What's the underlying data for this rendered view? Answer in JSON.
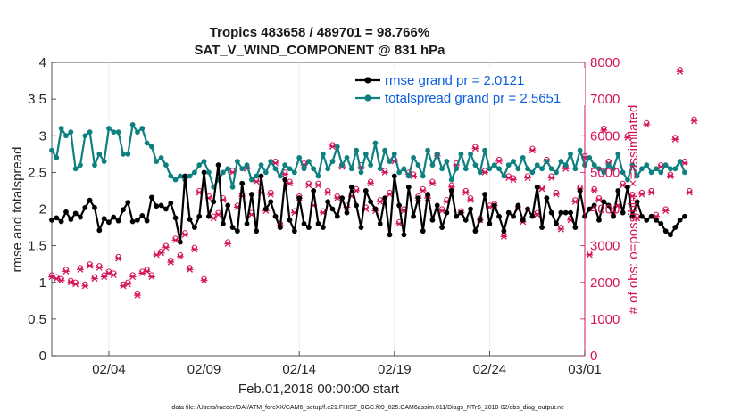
{
  "chart_data": {
    "type": "line",
    "title": "Tropics 483658 / 489701 = 98.766%",
    "subtitle": "SAT_V_WIND_COMPONENT @ 831 hPa",
    "xlabel": "Feb.01,2018 00:00:00 start",
    "ylabel": "rmse and totalspread",
    "ylabel_right": "# of obs: o=possible; ×=assimilated",
    "footer": "data file: /Users/raeder/DAI/ATM_forcXX/CAM6_setup/f.e21.FHIST_BGC.f09_025.CAM6assim.011/Diags_NTrS_2018-02/obs_diag_output.nc",
    "xlim": [
      0,
      28
    ],
    "ylim": [
      0,
      4
    ],
    "ylim_right": [
      0,
      8000
    ],
    "x_ticks": [
      {
        "label": "02/04",
        "value": 3
      },
      {
        "label": "02/09",
        "value": 8
      },
      {
        "label": "02/14",
        "value": 13
      },
      {
        "label": "02/19",
        "value": 18
      },
      {
        "label": "02/24",
        "value": 23
      },
      {
        "label": "03/01",
        "value": 28
      }
    ],
    "y_ticks": [
      "0",
      "0.5",
      "1",
      "1.5",
      "2",
      "2.5",
      "3",
      "3.5",
      "4"
    ],
    "y_ticks_right": [
      "0",
      "1000",
      "2000",
      "3000",
      "4000",
      "5000",
      "6000",
      "7000",
      "8000"
    ],
    "step": 0.25,
    "series": [
      {
        "name": "rmse grand pr = 2.0121",
        "color": "#000000",
        "marker": "filled-circle",
        "values": [
          1.85,
          1.88,
          1.83,
          1.96,
          1.86,
          1.94,
          1.89,
          2.02,
          2.12,
          2.02,
          1.71,
          1.87,
          1.82,
          1.89,
          1.84,
          1.99,
          2.09,
          1.83,
          1.85,
          1.91,
          1.84,
          2.16,
          2.04,
          2.05,
          2.0,
          2.08,
          1.88,
          1.55,
          2.45,
          1.86,
          1.75,
          1.9,
          2.5,
          1.9,
          2.1,
          2.6,
          1.8,
          2.05,
          1.75,
          1.7,
          2.35,
          1.8,
          2.2,
          1.7,
          2.45,
          2.0,
          2.1,
          1.9,
          1.75,
          2.4,
          1.85,
          1.7,
          2.15,
          1.8,
          1.75,
          2.25,
          1.8,
          1.75,
          2.1,
          2.0,
          1.9,
          2.15,
          1.95,
          2.3,
          2.05,
          1.75,
          2.25,
          2.1,
          2.0,
          1.8,
          2.15,
          1.65,
          2.45,
          2.05,
          1.65,
          2.3,
          1.9,
          2.15,
          1.7,
          2.2,
          1.85,
          2.05,
          1.75,
          1.95,
          2.25,
          1.9,
          1.95,
          1.85,
          2.0,
          1.7,
          1.85,
          2.2,
          1.8,
          2.05,
          1.9,
          1.7,
          1.95,
          1.9,
          2.05,
          1.85,
          2.0,
          1.9,
          2.3,
          1.75,
          2.15,
          1.95,
          1.8,
          1.95,
          1.95,
          1.95,
          1.75,
          2.25,
          1.9,
          2.0,
          2.05,
          1.85,
          2.1,
          2.05,
          1.9,
          2.25,
          1.95,
          2.3,
          1.9,
          2.1,
          1.9,
          1.85,
          1.9,
          1.85,
          1.8,
          1.7,
          1.65,
          1.75,
          1.85,
          1.9
        ]
      },
      {
        "name": "totalspread grand pr = 2.5651",
        "color": "#0f8080",
        "marker": "filled-circle",
        "values": [
          2.8,
          2.7,
          3.1,
          3.0,
          3.05,
          2.55,
          2.6,
          3.0,
          3.05,
          2.6,
          2.75,
          2.65,
          3.1,
          3.05,
          3.05,
          2.75,
          2.75,
          3.15,
          3.05,
          3.1,
          2.9,
          2.85,
          2.65,
          2.7,
          2.6,
          2.45,
          2.4,
          2.45,
          2.4,
          2.45,
          2.5,
          2.6,
          2.65,
          2.5,
          2.3,
          2.4,
          2.5,
          2.55,
          2.3,
          2.65,
          2.55,
          2.6,
          2.4,
          2.45,
          2.6,
          2.5,
          2.65,
          2.55,
          2.45,
          2.6,
          2.55,
          2.5,
          2.7,
          2.55,
          2.65,
          2.55,
          2.45,
          2.75,
          2.55,
          2.65,
          2.85,
          2.6,
          2.7,
          2.55,
          2.8,
          2.5,
          2.75,
          2.6,
          2.9,
          2.55,
          2.8,
          2.65,
          2.75,
          2.5,
          2.55,
          2.45,
          2.7,
          2.6,
          2.45,
          2.8,
          2.6,
          2.75,
          2.55,
          2.65,
          2.4,
          2.55,
          2.75,
          2.55,
          2.75,
          2.6,
          2.5,
          2.8,
          2.55,
          2.6,
          2.55,
          2.45,
          2.6,
          2.65,
          2.55,
          2.7,
          2.55,
          2.5,
          2.6,
          2.55,
          2.65,
          2.55,
          2.5,
          2.65,
          2.6,
          2.75,
          2.55,
          2.8,
          2.6,
          2.7,
          2.6,
          2.55,
          2.5,
          2.6,
          2.55,
          2.75,
          2.5,
          2.4,
          2.6,
          2.45,
          2.55,
          2.6,
          2.5,
          2.55,
          2.5,
          2.6,
          2.55,
          2.55,
          2.65,
          2.5
        ]
      }
    ],
    "obs_series": {
      "name": "# of obs (possible / assimilated)",
      "color": "#d4145a",
      "axis": "right",
      "possible": [
        2200,
        2150,
        2100,
        2350,
        2050,
        2000,
        2400,
        1950,
        2500,
        2150,
        2450,
        2200,
        2300,
        2250,
        2700,
        1950,
        2000,
        2200,
        1700,
        2300,
        2350,
        2200,
        2800,
        2850,
        3000,
        2600,
        3200,
        2750,
        3350,
        2400,
        2950,
        4500,
        2100,
        4350,
        3800,
        3900,
        4300,
        3100,
        5050,
        4100,
        4400,
        5150,
        3900,
        4800,
        4500,
        4000,
        4450,
        5300,
        3600,
        5000,
        4750,
        3950,
        4350,
        5250,
        4700,
        4150,
        4700,
        3950,
        4500,
        5750,
        4350,
        5200,
        4100,
        4400,
        4550,
        5200,
        4050,
        4750,
        4000,
        4250,
        5050,
        4450,
        5350,
        3650,
        4000,
        5000,
        4950,
        4350,
        4550,
        4350,
        4750,
        5500,
        4000,
        4250,
        4650,
        5250,
        3950,
        4500,
        4300,
        5700,
        3750,
        5050,
        4100,
        4150,
        5350,
        3300,
        4900,
        4850,
        4050,
        3700,
        4900,
        5650,
        3900,
        4600,
        5350,
        4900,
        4450,
        3500,
        5150,
        3750,
        4250,
        4600,
        5450,
        2800,
        4550,
        4300,
        6200,
        5300,
        3950,
        4150,
        4700,
        6000,
        4400,
        3800,
        4450,
        6350,
        4500,
        3850,
        5200,
        4000,
        4950,
        5950,
        7800,
        5300,
        4500,
        6450
      ],
      "assimilated": [
        2150,
        2100,
        2050,
        2300,
        2000,
        1950,
        2350,
        1900,
        2450,
        2100,
        2400,
        2150,
        2250,
        2200,
        2650,
        1900,
        1950,
        2150,
        1650,
        2250,
        2300,
        2150,
        2750,
        2800,
        2950,
        2550,
        3150,
        2700,
        3300,
        2350,
        2900,
        4450,
        2050,
        4300,
        3750,
        3850,
        4250,
        3050,
        5000,
        4050,
        4350,
        5100,
        3850,
        4750,
        4450,
        3950,
        4400,
        5250,
        3550,
        4950,
        4700,
        3900,
        4300,
        5200,
        4650,
        4100,
        4650,
        3900,
        4450,
        5700,
        4300,
        5150,
        4050,
        4350,
        4500,
        5150,
        4000,
        4700,
        3950,
        4200,
        5000,
        4400,
        5300,
        3600,
        3950,
        4950,
        4900,
        4300,
        4500,
        4300,
        4700,
        5450,
        3950,
        4200,
        4600,
        5200,
        3900,
        4450,
        4250,
        5650,
        3700,
        5000,
        4050,
        4100,
        5300,
        3250,
        4850,
        4800,
        4000,
        3650,
        4850,
        5600,
        3850,
        4550,
        5300,
        4850,
        4400,
        3450,
        5100,
        3700,
        4200,
        4550,
        5400,
        2750,
        4500,
        4250,
        6150,
        5250,
        3900,
        4100,
        4650,
        5950,
        4350,
        3750,
        4400,
        6300,
        4450,
        3800,
        5150,
        3950,
        4900,
        5900,
        7750,
        5250,
        4450,
        6400
      ]
    }
  }
}
